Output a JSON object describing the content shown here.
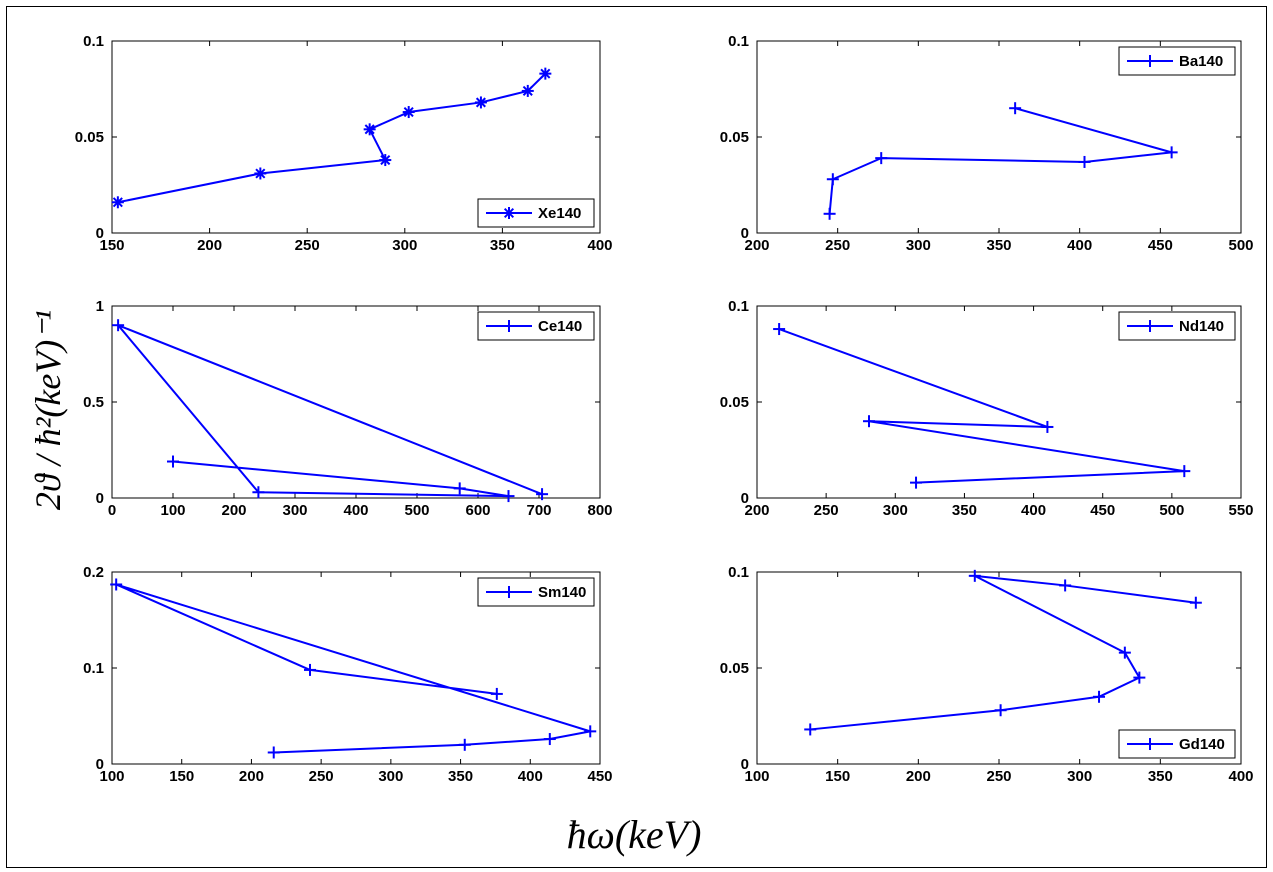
{
  "figure": {
    "ylabel": "2ϑ / ħ²(keV)⁻¹",
    "xlabel": "ħω(keV)"
  },
  "colors": {
    "series": "#0000ff",
    "axes": "#000000",
    "background": "#ffffff"
  },
  "chart_data": [
    {
      "type": "line",
      "marker": "asterisk",
      "xlim": [
        150,
        400
      ],
      "ylim": [
        0,
        0.1
      ],
      "xticks": [
        150,
        200,
        250,
        300,
        350,
        400
      ],
      "yticks": [
        0,
        0.05,
        0.1
      ],
      "xtick_labels": [
        "150",
        "200",
        "250",
        "300",
        "350",
        "400"
      ],
      "ytick_labels": [
        "0",
        "0.05",
        "0.1"
      ],
      "legend_position": "bottom-right",
      "series": [
        {
          "name": "Xe140",
          "x": [
            153,
            226,
            290,
            282,
            302,
            339,
            363,
            372
          ],
          "y": [
            0.016,
            0.031,
            0.038,
            0.054,
            0.063,
            0.068,
            0.074,
            0.083
          ]
        }
      ]
    },
    {
      "type": "line",
      "marker": "plus",
      "xlim": [
        200,
        500
      ],
      "ylim": [
        0,
        0.1
      ],
      "xticks": [
        200,
        250,
        300,
        350,
        400,
        450,
        500
      ],
      "yticks": [
        0,
        0.05,
        0.1
      ],
      "xtick_labels": [
        "200",
        "250",
        "300",
        "350",
        "400",
        "450",
        "500"
      ],
      "ytick_labels": [
        "0",
        "0.05",
        "0.1"
      ],
      "legend_position": "top-right",
      "series": [
        {
          "name": "Ba140",
          "x": [
            245,
            247,
            277,
            403,
            457,
            360
          ],
          "y": [
            0.01,
            0.028,
            0.039,
            0.037,
            0.042,
            0.065
          ]
        }
      ]
    },
    {
      "type": "line",
      "marker": "plus",
      "xlim": [
        0,
        800
      ],
      "ylim": [
        0,
        1
      ],
      "xticks": [
        0,
        100,
        200,
        300,
        400,
        500,
        600,
        700,
        800
      ],
      "yticks": [
        0,
        0.5,
        1
      ],
      "xtick_labels": [
        "0",
        "100",
        "200",
        "300",
        "400",
        "500",
        "600",
        "700",
        "800"
      ],
      "ytick_labels": [
        "0",
        "0.5",
        "1"
      ],
      "legend_position": "top-right",
      "series": [
        {
          "name": "Ce140",
          "x": [
            100,
            570,
            650,
            240,
            10,
            705
          ],
          "y": [
            0.19,
            0.05,
            0.01,
            0.03,
            0.9,
            0.02
          ]
        }
      ]
    },
    {
      "type": "line",
      "marker": "plus",
      "xlim": [
        200,
        550
      ],
      "ylim": [
        0,
        0.1
      ],
      "xticks": [
        200,
        250,
        300,
        350,
        400,
        450,
        500,
        550
      ],
      "yticks": [
        0,
        0.05,
        0.1
      ],
      "xtick_labels": [
        "200",
        "250",
        "300",
        "350",
        "400",
        "450",
        "500",
        "550"
      ],
      "ytick_labels": [
        "0",
        "0.05",
        "0.1"
      ],
      "legend_position": "top-right",
      "series": [
        {
          "name": "Nd140",
          "x": [
            216,
            410,
            281,
            509,
            315
          ],
          "y": [
            0.088,
            0.037,
            0.04,
            0.014,
            0.008
          ]
        }
      ]
    },
    {
      "type": "line",
      "marker": "plus",
      "xlim": [
        100,
        450
      ],
      "ylim": [
        0,
        0.2
      ],
      "xticks": [
        100,
        150,
        200,
        250,
        300,
        350,
        400,
        450
      ],
      "yticks": [
        0,
        0.1,
        0.2
      ],
      "xtick_labels": [
        "100",
        "150",
        "200",
        "250",
        "300",
        "350",
        "400",
        "450"
      ],
      "ytick_labels": [
        "0",
        "0.1",
        "0.2"
      ],
      "legend_position": "top-right",
      "series": [
        {
          "name": "Sm140",
          "x": [
            376,
            242,
            103,
            443,
            414,
            353,
            216
          ],
          "y": [
            0.073,
            0.098,
            0.187,
            0.034,
            0.026,
            0.02,
            0.012
          ]
        }
      ]
    },
    {
      "type": "line",
      "marker": "plus",
      "xlim": [
        100,
        400
      ],
      "ylim": [
        0,
        0.1
      ],
      "xticks": [
        100,
        150,
        200,
        250,
        300,
        350,
        400
      ],
      "yticks": [
        0,
        0.05,
        0.1
      ],
      "xtick_labels": [
        "100",
        "150",
        "200",
        "250",
        "300",
        "350",
        "400"
      ],
      "ytick_labels": [
        "0",
        "0.05",
        "0.1"
      ],
      "legend_position": "bottom-right",
      "series": [
        {
          "name": "Gd140",
          "x": [
            133,
            251,
            312,
            337,
            328,
            235,
            291,
            372
          ],
          "y": [
            0.018,
            0.028,
            0.035,
            0.045,
            0.058,
            0.098,
            0.093,
            0.084
          ]
        }
      ]
    }
  ]
}
